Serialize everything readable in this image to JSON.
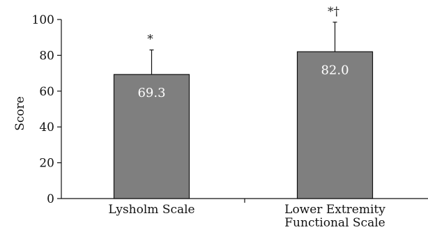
{
  "chart_data": {
    "type": "bar",
    "categories": [
      "Lysholm Scale",
      "Lower Extremity Functional Scale"
    ],
    "category_lines": [
      [
        "Lysholm Scale"
      ],
      [
        "Lower Extremity",
        "Functional Scale"
      ]
    ],
    "values": [
      69.3,
      82.0
    ],
    "value_labels": [
      "69.3",
      "82.0"
    ],
    "error_upper": [
      83,
      98.5
    ],
    "significance": [
      "*",
      "*†"
    ],
    "ylabel": "Score",
    "xlabel": "",
    "ylim": [
      0,
      100
    ],
    "yticks": [
      0,
      20,
      40,
      60,
      80,
      100
    ],
    "bar_color": "#7f7f7f",
    "grid": false
  }
}
